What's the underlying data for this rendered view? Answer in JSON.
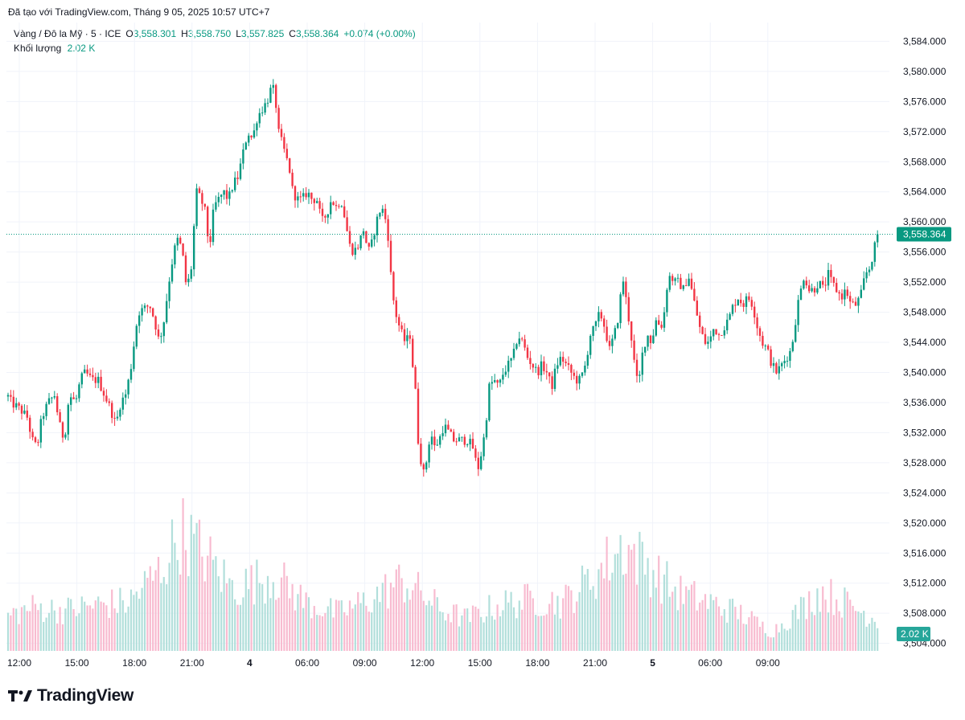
{
  "header": {
    "created": "Đã tạo với TradingView.com, Tháng 9 05, 2025 10:57 UTC+7",
    "symbol": "Vàng / Đô la Mỹ · 5 · ICE",
    "o_label": "O",
    "o_value": "3,558.301",
    "h_label": "H",
    "h_value": "3,558.750",
    "l_label": "L",
    "l_value": "3,557.825",
    "c_label": "C",
    "c_value": "3,558.364",
    "change": "+0.074 (+0.00%)",
    "volume_label": "Khối lượng",
    "volume_value": "2.02 K"
  },
  "footer": {
    "brand": "TradingView",
    "logo_icon": "tradingview-logo-icon"
  },
  "colors": {
    "up": "#089981",
    "down": "#f23645",
    "grid": "#f0f3fa",
    "vol_up": "#b2dfdb",
    "vol_down": "#f8bbd0"
  },
  "chart_data": {
    "type": "candlestick",
    "title": "Vàng / Đô la Mỹ · 5 · ICE",
    "ylim": [
      3503.0,
      3586.5
    ],
    "y_ticks": [
      "3,584.000",
      "3,580.000",
      "3,576.000",
      "3,572.000",
      "3,568.000",
      "3,564.000",
      "3,560.000",
      "3,556.000",
      "3,552.000",
      "3,548.000",
      "3,544.000",
      "3,540.000",
      "3,536.000",
      "3,532.000",
      "3,528.000",
      "3,524.000",
      "3,520.000",
      "3,516.000",
      "3,512.000",
      "3,508.000",
      "3,504.000"
    ],
    "x_ticks": [
      "12:00",
      "15:00",
      "18:00",
      "21:00",
      "4",
      "06:00",
      "09:00",
      "12:00",
      "15:00",
      "18:00",
      "21:00",
      "5",
      "06:00",
      "09:00"
    ],
    "last_price": 3558.364,
    "last_price_label": "3,558.364",
    "last_volume_label": "2.02 K",
    "path": [
      [
        0,
        3535.5
      ],
      [
        4,
        3538
      ],
      [
        14,
        3536
      ],
      [
        26,
        3535
      ],
      [
        34,
        3534
      ],
      [
        40,
        3531
      ],
      [
        46,
        3530
      ],
      [
        52,
        3534
      ],
      [
        60,
        3536
      ],
      [
        68,
        3537
      ],
      [
        74,
        3533
      ],
      [
        80,
        3531
      ],
      [
        86,
        3537
      ],
      [
        94,
        3536
      ],
      [
        100,
        3539
      ],
      [
        106,
        3540
      ],
      [
        114,
        3539
      ],
      [
        122,
        3539
      ],
      [
        130,
        3537
      ],
      [
        138,
        3535
      ],
      [
        144,
        3533
      ],
      [
        150,
        3536
      ],
      [
        156,
        3537
      ],
      [
        162,
        3540
      ],
      [
        168,
        3545
      ],
      [
        172,
        3548
      ],
      [
        180,
        3548.5
      ],
      [
        186,
        3549
      ],
      [
        192,
        3547
      ],
      [
        198,
        3544
      ],
      [
        204,
        3547
      ],
      [
        210,
        3552
      ],
      [
        216,
        3556
      ],
      [
        222,
        3558
      ],
      [
        228,
        3555
      ],
      [
        232,
        3551
      ],
      [
        238,
        3554
      ],
      [
        244,
        3564
      ],
      [
        250,
        3563
      ],
      [
        256,
        3561
      ],
      [
        260,
        3556
      ],
      [
        266,
        3562
      ],
      [
        272,
        3563
      ],
      [
        278,
        3564
      ],
      [
        284,
        3563
      ],
      [
        290,
        3565
      ],
      [
        296,
        3566
      ],
      [
        302,
        3569
      ],
      [
        308,
        3572
      ],
      [
        314,
        3571
      ],
      [
        320,
        3574
      ],
      [
        326,
        3575
      ],
      [
        332,
        3576
      ],
      [
        338,
        3578
      ],
      [
        342,
        3577
      ],
      [
        346,
        3572
      ],
      [
        352,
        3570
      ],
      [
        360,
        3567
      ],
      [
        364,
        3564
      ],
      [
        370,
        3563
      ],
      [
        376,
        3563
      ],
      [
        382,
        3564
      ],
      [
        388,
        3563
      ],
      [
        394,
        3563
      ],
      [
        400,
        3560
      ],
      [
        406,
        3561
      ],
      [
        412,
        3563
      ],
      [
        418,
        3562
      ],
      [
        424,
        3563
      ],
      [
        430,
        3560
      ],
      [
        434,
        3557
      ],
      [
        440,
        3556
      ],
      [
        446,
        3557
      ],
      [
        452,
        3559
      ],
      [
        458,
        3556
      ],
      [
        462,
        3557
      ],
      [
        468,
        3560
      ],
      [
        474,
        3562
      ],
      [
        478,
        3561
      ],
      [
        482,
        3559
      ],
      [
        486,
        3553
      ],
      [
        490,
        3549
      ],
      [
        494,
        3547
      ],
      [
        500,
        3545
      ],
      [
        504,
        3544
      ],
      [
        510,
        3545
      ],
      [
        514,
        3540
      ],
      [
        518,
        3536
      ],
      [
        520,
        3531
      ],
      [
        524,
        3528
      ],
      [
        528,
        3526
      ],
      [
        532,
        3530
      ],
      [
        536,
        3532
      ],
      [
        540,
        3530
      ],
      [
        546,
        3531
      ],
      [
        552,
        3533
      ],
      [
        558,
        3532
      ],
      [
        564,
        3531
      ],
      [
        570,
        3531
      ],
      [
        576,
        3531
      ],
      [
        582,
        3531
      ],
      [
        588,
        3530
      ],
      [
        594,
        3527
      ],
      [
        600,
        3530
      ],
      [
        604,
        3533
      ],
      [
        608,
        3538
      ],
      [
        614,
        3539
      ],
      [
        620,
        3538
      ],
      [
        626,
        3540
      ],
      [
        632,
        3541
      ],
      [
        638,
        3542
      ],
      [
        644,
        3545
      ],
      [
        650,
        3544
      ],
      [
        656,
        3542
      ],
      [
        662,
        3541
      ],
      [
        668,
        3540
      ],
      [
        674,
        3541
      ],
      [
        680,
        3540
      ],
      [
        686,
        3538
      ],
      [
        692,
        3541
      ],
      [
        698,
        3542
      ],
      [
        704,
        3541
      ],
      [
        710,
        3540
      ],
      [
        716,
        3539
      ],
      [
        722,
        3539
      ],
      [
        728,
        3541
      ],
      [
        734,
        3545
      ],
      [
        740,
        3546
      ],
      [
        746,
        3548
      ],
      [
        752,
        3546
      ],
      [
        758,
        3543
      ],
      [
        764,
        3545
      ],
      [
        770,
        3548
      ],
      [
        774,
        3553
      ],
      [
        778,
        3550
      ],
      [
        782,
        3547
      ],
      [
        786,
        3544
      ],
      [
        790,
        3540
      ],
      [
        794,
        3538
      ],
      [
        798,
        3542
      ],
      [
        802,
        3544
      ],
      [
        806,
        3545
      ],
      [
        810,
        3544
      ],
      [
        816,
        3547
      ],
      [
        822,
        3546
      ],
      [
        826,
        3548
      ],
      [
        830,
        3552
      ],
      [
        834,
        3553
      ],
      [
        838,
        3552
      ],
      [
        844,
        3552
      ],
      [
        850,
        3551
      ],
      [
        856,
        3553
      ],
      [
        860,
        3551
      ],
      [
        866,
        3548
      ],
      [
        870,
        3546
      ],
      [
        876,
        3544
      ],
      [
        882,
        3544
      ],
      [
        888,
        3546
      ],
      [
        894,
        3545
      ],
      [
        900,
        3546
      ],
      [
        906,
        3547
      ],
      [
        912,
        3549
      ],
      [
        918,
        3550
      ],
      [
        924,
        3549
      ],
      [
        930,
        3550
      ],
      [
        936,
        3549
      ],
      [
        942,
        3546
      ],
      [
        948,
        3544
      ],
      [
        954,
        3543
      ],
      [
        960,
        3541
      ],
      [
        966,
        3540
      ],
      [
        972,
        3541
      ],
      [
        978,
        3542
      ],
      [
        984,
        3543
      ],
      [
        988,
        3546
      ],
      [
        992,
        3549
      ],
      [
        996,
        3551
      ],
      [
        1000,
        3553
      ],
      [
        1006,
        3551
      ],
      [
        1012,
        3551
      ],
      [
        1018,
        3552
      ],
      [
        1024,
        3551
      ],
      [
        1030,
        3553
      ],
      [
        1034,
        3552
      ],
      [
        1040,
        3551
      ],
      [
        1046,
        3550
      ],
      [
        1052,
        3551
      ],
      [
        1058,
        3549
      ],
      [
        1064,
        3549
      ],
      [
        1070,
        3550
      ],
      [
        1076,
        3553
      ],
      [
        1082,
        3554
      ],
      [
        1086,
        3556
      ],
      [
        1090,
        3557.5
      ],
      [
        1094,
        3558.4
      ]
    ],
    "volume": {
      "ylim": [
        0,
        240
      ],
      "profile": [
        [
          0,
          60
        ],
        [
          40,
          80
        ],
        [
          80,
          75
        ],
        [
          120,
          85
        ],
        [
          160,
          90
        ],
        [
          200,
          150
        ],
        [
          225,
          220
        ],
        [
          250,
          185
        ],
        [
          290,
          115
        ],
        [
          340,
          140
        ],
        [
          380,
          90
        ],
        [
          420,
          70
        ],
        [
          460,
          95
        ],
        [
          500,
          130
        ],
        [
          520,
          110
        ],
        [
          550,
          75
        ],
        [
          580,
          60
        ],
        [
          620,
          85
        ],
        [
          660,
          95
        ],
        [
          700,
          90
        ],
        [
          740,
          140
        ],
        [
          775,
          195
        ],
        [
          800,
          165
        ],
        [
          840,
          110
        ],
        [
          880,
          90
        ],
        [
          920,
          70
        ],
        [
          960,
          35
        ],
        [
          990,
          70
        ],
        [
          1020,
          110
        ],
        [
          1050,
          90
        ],
        [
          1094,
          55
        ]
      ]
    }
  }
}
